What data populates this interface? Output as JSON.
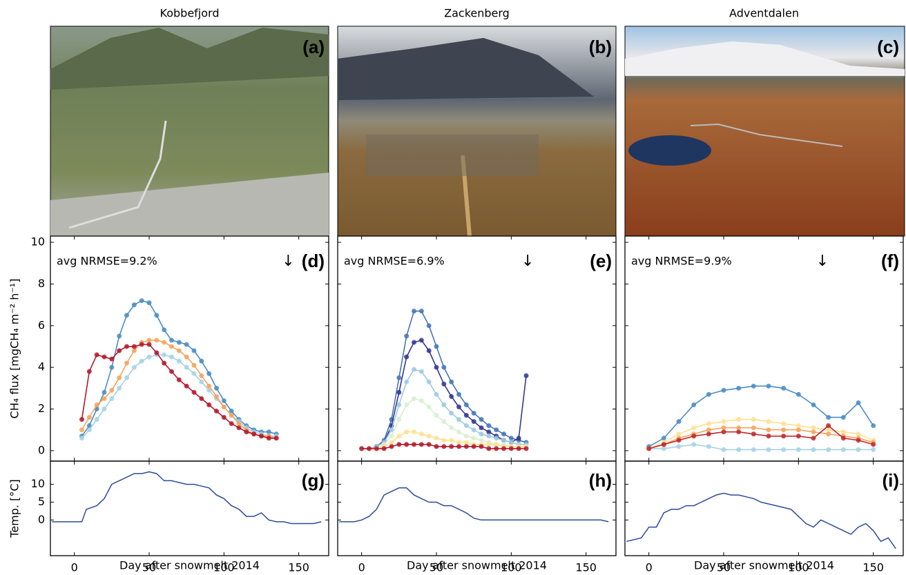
{
  "photos": [
    {
      "site": "Kobbefjord",
      "label": "(a)"
    },
    {
      "site": "Zackenberg",
      "label": "(b)"
    },
    {
      "site": "Adventdalen",
      "label": "(c)"
    }
  ],
  "chart_data": [
    {
      "type": "line",
      "panel_label": "(d)",
      "annotation": "avg NRMSE=9.2%",
      "arrow": {
        "x": 143,
        "label": "↓"
      },
      "ylabel": "CH₄ flux [mgCH₄ m⁻² h⁻¹]",
      "x": [
        5,
        10,
        15,
        20,
        25,
        30,
        35,
        40,
        45,
        50,
        55,
        60,
        65,
        70,
        75,
        80,
        85,
        90,
        95,
        100,
        105,
        110,
        115,
        120,
        125,
        130,
        135
      ],
      "series": [
        {
          "color": "#4a8cc2",
          "values": [
            0.7,
            1.2,
            2,
            2.8,
            4,
            5.5,
            6.5,
            7,
            7.2,
            7.1,
            6.5,
            5.8,
            5.3,
            5.2,
            5.1,
            4.8,
            4.3,
            3.7,
            3,
            2.4,
            1.9,
            1.5,
            1.2,
            1,
            0.9,
            0.9,
            0.8
          ]
        },
        {
          "color": "#a6d2e6",
          "values": [
            0.6,
            1,
            1.5,
            2,
            2.5,
            3,
            3.5,
            4,
            4.3,
            4.5,
            4.6,
            4.6,
            4.5,
            4.3,
            4,
            3.7,
            3.3,
            2.9,
            2.5,
            2.1,
            1.7,
            1.4,
            1.1,
            0.9,
            0.8,
            0.7,
            0.7
          ]
        },
        {
          "color": "#f6a35c",
          "values": [
            1,
            1.6,
            2.2,
            2.5,
            2.9,
            3.5,
            4.2,
            4.8,
            5.2,
            5.3,
            5.3,
            5.2,
            5,
            4.8,
            4.5,
            4.1,
            3.6,
            3.1,
            2.6,
            2.1,
            1.7,
            1.3,
            1,
            0.8,
            0.7,
            0.7,
            0.6
          ]
        },
        {
          "color": "#b2182b",
          "values": [
            1.5,
            3.8,
            4.6,
            4.5,
            4.4,
            4.8,
            5,
            5,
            5.1,
            5.1,
            4.7,
            4.2,
            3.8,
            3.4,
            3.1,
            2.8,
            2.5,
            2.2,
            1.9,
            1.6,
            1.3,
            1.1,
            0.9,
            0.8,
            0.7,
            0.6,
            0.6
          ]
        }
      ],
      "xlim": [
        -16,
        170
      ],
      "ylim": [
        -0.5,
        10.3
      ],
      "xticks": [
        0,
        50,
        100,
        150
      ],
      "yticks": [
        0,
        2,
        4,
        6,
        8,
        10
      ]
    },
    {
      "type": "line",
      "panel_label": "(e)",
      "annotation": "avg NRMSE=6.9%",
      "arrow": {
        "x": 111,
        "label": "↓"
      },
      "x": [
        0,
        5,
        10,
        15,
        20,
        25,
        30,
        35,
        40,
        45,
        50,
        55,
        60,
        65,
        70,
        75,
        80,
        85,
        90,
        95,
        100,
        105,
        110
      ],
      "series": [
        {
          "color": "#4575b4",
          "values": [
            0.1,
            0.1,
            0.2,
            0.5,
            1.5,
            3.5,
            5.5,
            6.7,
            6.7,
            6,
            5,
            4,
            3.3,
            2.7,
            2.2,
            1.8,
            1.5,
            1.2,
            1,
            0.8,
            0.6,
            0.5,
            0.4
          ]
        },
        {
          "color": "#313695",
          "values": [
            0.1,
            0.1,
            0.2,
            0.4,
            1.2,
            2.8,
            4.5,
            5.2,
            5.3,
            4.8,
            4,
            3.2,
            2.6,
            2.1,
            1.7,
            1.4,
            1.1,
            0.9,
            0.7,
            0.5,
            0.4,
            0.6,
            3.6
          ]
        },
        {
          "color": "#9ecae1",
          "values": [
            0.1,
            0.1,
            0.2,
            0.4,
            1,
            2.2,
            3.3,
            3.9,
            3.8,
            3.3,
            2.7,
            2.2,
            1.8,
            1.5,
            1.2,
            1,
            0.8,
            0.7,
            0.6,
            0.5,
            0.4,
            0.3,
            0.3
          ]
        },
        {
          "color": "#d9efcf",
          "values": [
            0.1,
            0.1,
            0.1,
            0.3,
            0.7,
            1.5,
            2.2,
            2.5,
            2.4,
            2.1,
            1.7,
            1.4,
            1.1,
            0.9,
            0.7,
            0.6,
            0.5,
            0.4,
            0.3,
            0.3,
            0.2,
            0.2,
            0.2
          ]
        },
        {
          "color": "#fee090",
          "values": [
            0.1,
            0.1,
            0.1,
            0.2,
            0.4,
            0.7,
            0.9,
            0.9,
            0.8,
            0.7,
            0.6,
            0.5,
            0.5,
            0.4,
            0.4,
            0.3,
            0.3,
            0.3,
            0.3,
            0.2,
            0.2,
            0.2,
            0.2
          ]
        },
        {
          "color": "#b2182b",
          "values": [
            0.1,
            0.1,
            0.1,
            0.1,
            0.2,
            0.3,
            0.3,
            0.3,
            0.3,
            0.3,
            0.2,
            0.2,
            0.2,
            0.2,
            0.2,
            0.2,
            0.2,
            0.1,
            0.1,
            0.1,
            0.1,
            0.1,
            0.1
          ]
        }
      ],
      "xlim": [
        -16,
        170
      ],
      "ylim": [
        -0.5,
        10.3
      ],
      "xticks": [
        0,
        50,
        100,
        150
      ],
      "yticks": [
        0,
        2,
        4,
        6,
        8,
        10
      ]
    },
    {
      "type": "line",
      "panel_label": "(f)",
      "annotation": "avg NRMSE=9.9%",
      "arrow": {
        "x": 116,
        "label": "↓"
      },
      "x": [
        0,
        10,
        20,
        30,
        40,
        50,
        60,
        70,
        80,
        90,
        100,
        110,
        120,
        130,
        140,
        150
      ],
      "series": [
        {
          "color": "#4a8cc2",
          "values": [
            0.2,
            0.6,
            1.4,
            2.2,
            2.7,
            2.9,
            3,
            3.1,
            3.1,
            3,
            2.7,
            2.2,
            1.6,
            1.6,
            2.3,
            1.2
          ]
        },
        {
          "color": "#a6d2e6",
          "values": [
            0.1,
            0.1,
            0.2,
            0.3,
            0.2,
            0.05,
            0.05,
            0.05,
            0.05,
            0.05,
            0.05,
            0.05,
            0.05,
            0.05,
            0.05,
            0.05
          ]
        },
        {
          "color": "#fee090",
          "values": [
            0.1,
            0.4,
            0.8,
            1.1,
            1.3,
            1.4,
            1.5,
            1.5,
            1.4,
            1.3,
            1.2,
            1.1,
            1,
            0.9,
            0.8,
            0.5
          ]
        },
        {
          "color": "#f6a35c",
          "values": [
            0.1,
            0.3,
            0.6,
            0.8,
            1,
            1.1,
            1.1,
            1.1,
            1,
            1,
            1,
            0.9,
            0.8,
            0.7,
            0.6,
            0.4
          ]
        },
        {
          "color": "#c0282d",
          "values": [
            0.1,
            0.3,
            0.5,
            0.7,
            0.8,
            0.9,
            0.9,
            0.8,
            0.7,
            0.7,
            0.7,
            0.6,
            1.2,
            0.6,
            0.5,
            0.3
          ]
        }
      ],
      "xlim": [
        -16,
        170
      ],
      "ylim": [
        -0.5,
        10.3
      ],
      "xticks": [
        0,
        50,
        100,
        150
      ],
      "yticks": [
        0,
        2,
        4,
        6,
        8,
        10
      ]
    },
    {
      "type": "line",
      "panel_label": "(g)",
      "ylabel": "Temp. [°C]",
      "xlabel": "Day after snowmelt 2014",
      "x": [
        -15,
        5,
        8,
        15,
        20,
        25,
        30,
        35,
        40,
        45,
        50,
        55,
        60,
        65,
        70,
        75,
        80,
        85,
        90,
        95,
        100,
        105,
        110,
        115,
        120,
        125,
        130,
        135,
        140,
        145,
        150,
        155,
        160,
        165
      ],
      "series": [
        {
          "color": "#2c4a9a",
          "values": [
            -0.5,
            -0.5,
            3,
            4,
            6,
            10,
            11,
            12,
            13,
            13,
            13.5,
            13,
            11,
            11,
            10.5,
            10,
            10,
            9.5,
            9,
            7,
            6,
            4,
            3,
            1,
            1,
            2,
            0,
            -0.5,
            -0.5,
            -1,
            -1,
            -1,
            -1,
            -0.5
          ]
        }
      ],
      "xlim": [
        -16,
        170
      ],
      "ylim": [
        -10,
        16.5
      ],
      "xticks": [
        0,
        50,
        100,
        150
      ],
      "yticks": [
        0,
        5,
        10
      ]
    },
    {
      "type": "line",
      "panel_label": "(h)",
      "xlabel": "Day after snowmelt 2014",
      "x": [
        -15,
        -5,
        0,
        5,
        10,
        15,
        20,
        25,
        30,
        35,
        40,
        45,
        50,
        55,
        60,
        65,
        70,
        75,
        80,
        100,
        120,
        140,
        160,
        165
      ],
      "series": [
        {
          "color": "#2c4a9a",
          "values": [
            -0.5,
            -0.5,
            0,
            1,
            3,
            7,
            8,
            9,
            9,
            7,
            6,
            5,
            5,
            4,
            4,
            3,
            2,
            0.5,
            0,
            0,
            0,
            0,
            0,
            -0.5
          ]
        }
      ],
      "xlim": [
        -16,
        170
      ],
      "ylim": [
        -10,
        16.5
      ],
      "xticks": [
        0,
        50,
        100,
        150
      ],
      "yticks": [
        0,
        5,
        10
      ]
    },
    {
      "type": "line",
      "panel_label": "(i)",
      "xlabel": "Day after snowmelt 2014",
      "x": [
        -15,
        -5,
        0,
        5,
        10,
        15,
        20,
        25,
        30,
        35,
        40,
        45,
        50,
        55,
        60,
        65,
        70,
        75,
        85,
        95,
        100,
        105,
        110,
        115,
        120,
        125,
        130,
        135,
        140,
        145,
        150,
        155,
        160,
        165
      ],
      "series": [
        {
          "color": "#2c4a9a",
          "values": [
            -6,
            -5,
            -2,
            -2,
            2,
            3,
            3,
            4,
            4,
            5,
            6,
            7,
            7.5,
            7,
            7,
            6.5,
            6,
            5,
            4,
            3,
            1,
            -1,
            -2,
            0,
            -1,
            -2,
            -3,
            -4,
            -2,
            -1,
            -3,
            -6,
            -5,
            -8
          ]
        }
      ],
      "xlim": [
        -16,
        170
      ],
      "ylim": [
        -10,
        16.5
      ],
      "xticks": [
        0,
        50,
        100,
        150
      ],
      "yticks": [
        0,
        5,
        10
      ]
    }
  ]
}
